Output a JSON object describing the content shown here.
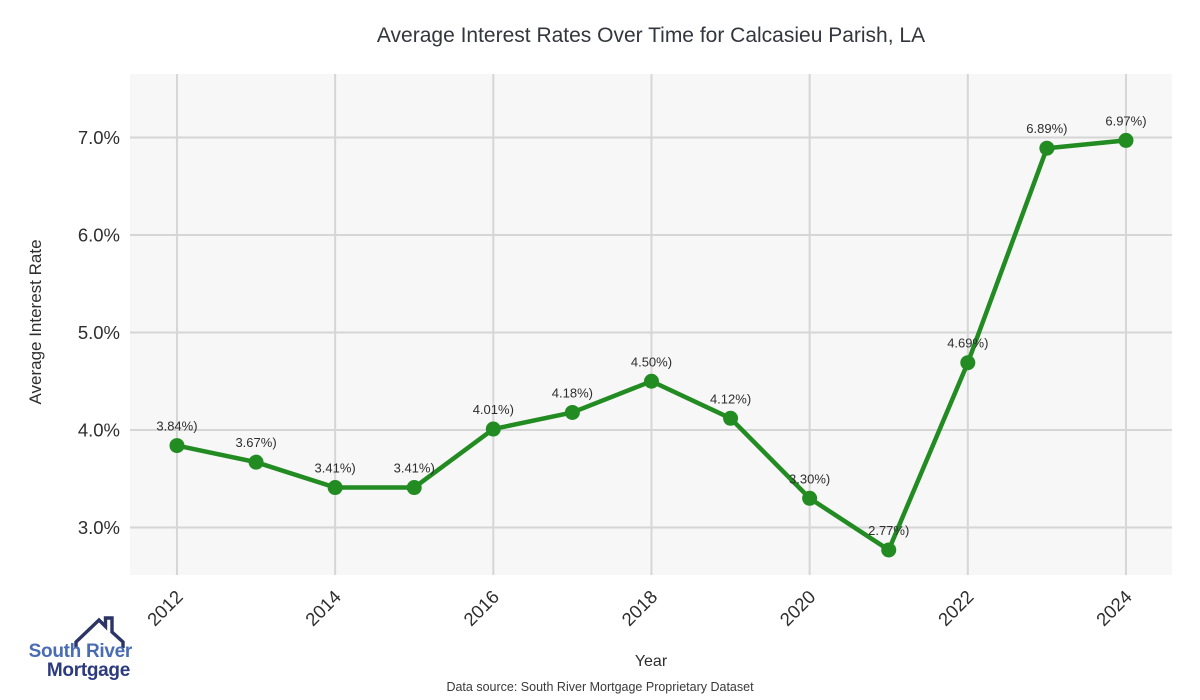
{
  "title": "Average Interest Rates Over Time for Calcasieu Parish, LA",
  "chart_data": {
    "type": "line",
    "x": [
      2012,
      2013,
      2014,
      2015,
      2016,
      2017,
      2018,
      2019,
      2020,
      2021,
      2022,
      2023,
      2024
    ],
    "series": [
      {
        "name": "Average Interest Rate",
        "values": [
          3.84,
          3.67,
          3.41,
          3.41,
          4.01,
          4.18,
          4.5,
          4.12,
          3.3,
          2.77,
          4.69,
          6.89,
          6.97
        ]
      }
    ],
    "point_labels": [
      "3.84%)",
      "3.67%)",
      "3.41%)",
      "3.41%)",
      "4.01%)",
      "4.18%)",
      "4.50%)",
      "4.12%)",
      "3.30%)",
      "2.77%)",
      "4.69%)",
      "6.89%)",
      "6.97%)"
    ],
    "title": "Average Interest Rates Over Time for Calcasieu Parish, LA",
    "xlabel": "Year",
    "ylabel": "Average Interest Rate",
    "x_ticks": [
      2012,
      2014,
      2016,
      2018,
      2020,
      2022,
      2024
    ],
    "y_ticks": [
      3,
      4,
      5,
      6,
      7
    ],
    "y_tick_labels": [
      "3.0%",
      "4.0%",
      "5.0%",
      "6.0%",
      "7.0%"
    ],
    "xlim": [
      2011.406,
      2024.582
    ],
    "ylim": [
      2.513,
      7.651
    ],
    "grid": true,
    "legend": "none",
    "line_color": "#228B22",
    "marker_color": "#228B22",
    "plot_bg_color": "#f7f7f7",
    "grid_color": "#d6d6d6",
    "tick_color": "#2e2e2e",
    "label_color": "#2e2e2e"
  },
  "footer": {
    "source": "Data source: South River Mortgage Proprietary Dataset"
  },
  "logo": {
    "line1": "South River",
    "line2": "Mortgage",
    "line1_color": "#4a6cb4",
    "line2_color": "#2c3a7e",
    "icon_color": "#2b3464"
  }
}
